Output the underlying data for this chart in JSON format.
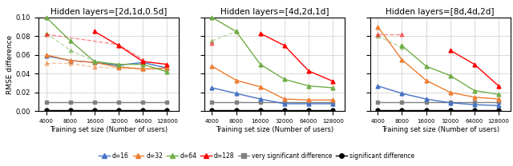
{
  "x": [
    4000,
    8000,
    16000,
    32000,
    64000,
    128000
  ],
  "titles": [
    "Hidden layers=[2d,1d,0.5d]",
    "Hidden layers=[4d,2d,1d]",
    "Hidden layers=[8d,4d,2d]"
  ],
  "subplot1": {
    "d16_solid": [
      0.059,
      0.054,
      0.052,
      0.049,
      0.052,
      0.046
    ],
    "d32_solid": [
      0.06,
      0.054,
      0.052,
      0.047,
      0.045,
      0.046
    ],
    "d64_solid": [
      0.1,
      0.075,
      0.053,
      0.05,
      0.05,
      0.042
    ],
    "d128_solid": [
      null,
      null,
      0.085,
      0.07,
      0.053,
      0.05
    ],
    "d16_dashed": [
      null,
      null,
      null,
      null,
      null,
      null
    ],
    "d32_dashed": [
      0.051,
      0.051,
      0.047,
      0.046,
      0.045,
      0.045
    ],
    "d64_dashed": [
      0.083,
      0.065,
      0.053,
      0.048,
      0.045,
      null
    ],
    "d128_dashed": [
      0.082,
      null,
      null,
      0.071,
      0.055,
      null
    ],
    "gray_line": [
      0.01,
      0.01,
      0.01,
      0.01,
      0.01,
      0.01
    ],
    "black_line": [
      0.001,
      0.001,
      0.001,
      0.001,
      0.001,
      0.001
    ]
  },
  "subplot2": {
    "d16_solid": [
      0.025,
      0.019,
      0.013,
      0.008,
      0.008,
      0.008
    ],
    "d32_solid": [
      0.048,
      0.033,
      0.026,
      0.013,
      0.012,
      0.012
    ],
    "d64_solid": [
      0.1,
      0.085,
      0.05,
      0.034,
      0.027,
      0.025
    ],
    "d128_solid": [
      null,
      null,
      0.083,
      0.07,
      0.043,
      0.032
    ],
    "d16_dashed": [
      null,
      null,
      null,
      null,
      null,
      null
    ],
    "d32_dashed": [
      null,
      null,
      null,
      null,
      null,
      null
    ],
    "d64_dashed": [
      0.075,
      0.085,
      null,
      null,
      null,
      null
    ],
    "d128_dashed": [
      0.073,
      null,
      null,
      null,
      null,
      null
    ],
    "gray_line": [
      0.01,
      0.01,
      0.01,
      0.01,
      0.01,
      0.01
    ],
    "black_line": [
      0.001,
      0.001,
      0.001,
      0.001,
      0.001,
      0.001
    ]
  },
  "subplot3": {
    "d16_solid": [
      0.027,
      0.019,
      0.013,
      0.009,
      0.007,
      0.006
    ],
    "d32_solid": [
      0.09,
      0.055,
      0.033,
      0.02,
      0.015,
      0.013
    ],
    "d64_solid": [
      null,
      0.07,
      0.048,
      0.038,
      0.022,
      0.018
    ],
    "d128_solid": [
      null,
      null,
      null,
      0.065,
      0.05,
      0.027
    ],
    "d16_dashed": [
      null,
      null,
      null,
      null,
      null,
      null
    ],
    "d32_dashed": [
      null,
      null,
      null,
      null,
      null,
      null
    ],
    "d64_dashed": [
      0.08,
      0.068,
      null,
      null,
      null,
      null
    ],
    "d128_dashed": [
      0.082,
      0.082,
      null,
      null,
      null,
      null
    ],
    "gray_line": [
      0.01,
      0.01,
      0.01,
      0.01,
      0.01,
      0.01
    ],
    "black_line": [
      0.001,
      0.001,
      0.001,
      0.001,
      0.001,
      0.001
    ]
  },
  "colors": {
    "d16": "#4472C4",
    "d32": "#ED7D31",
    "d64": "#70AD47",
    "d128": "#FF0000",
    "gray": "#808080",
    "black": "#000000"
  },
  "ylim": [
    0.0,
    0.1
  ],
  "yticks": [
    0.0,
    0.02,
    0.04,
    0.06,
    0.08,
    0.1
  ],
  "xlabel": "Training set size (Number of users)",
  "ylabel": "RMSE difference",
  "legend_labels": [
    "d=16",
    "d=32",
    "d=64",
    "d=128",
    "very significant difference",
    "significant difference"
  ]
}
